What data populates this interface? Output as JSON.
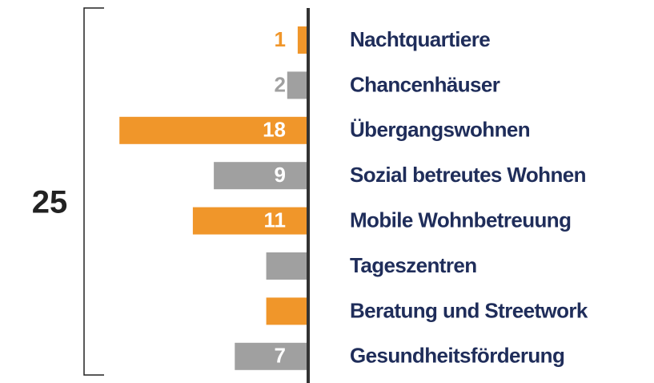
{
  "chart_data": {
    "type": "bar",
    "orientation": "horizontal",
    "annotation": "25",
    "categories": [
      "Nachtquartiere",
      "Chancenhäuser",
      "Übergangswohnen",
      "Sozial betreutes Wohnen",
      "Mobile Wohnbetreuung",
      "Tageszentren",
      "Beratung und Streetwork",
      "Gesundheitsförderung"
    ],
    "values": [
      1,
      2,
      18,
      9,
      11,
      4,
      4,
      7
    ],
    "colors": [
      "#f0962a",
      "#a0a0a0",
      "#f0962a",
      "#a0a0a0",
      "#f0962a",
      "#a0a0a0",
      "#f0962a",
      "#a0a0a0"
    ]
  }
}
